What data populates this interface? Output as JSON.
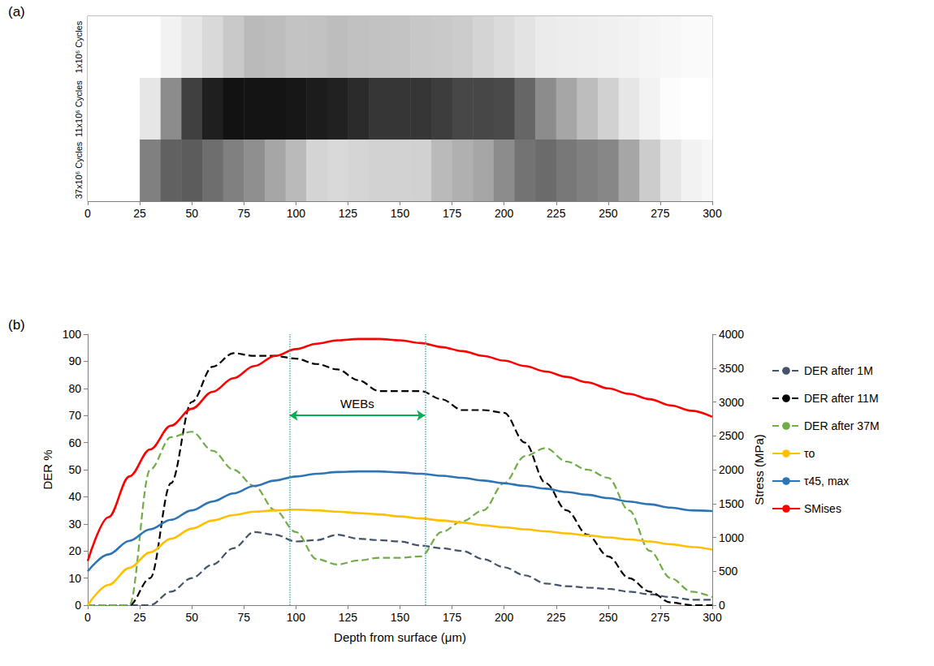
{
  "chart_data": [
    {
      "panel": "(a)",
      "type": "heatmap",
      "x": [
        0,
        10,
        20,
        30,
        40,
        50,
        60,
        70,
        80,
        90,
        100,
        110,
        120,
        130,
        140,
        150,
        160,
        170,
        180,
        190,
        200,
        210,
        220,
        230,
        240,
        250,
        260,
        270,
        280,
        290,
        300
      ],
      "categories": [
        "1x10⁶ Cycles",
        "11x10⁶ Cycles",
        "37x10⁶ Cycles"
      ],
      "cells": [
        [
          0,
          0,
          0,
          0,
          5,
          10,
          15,
          21,
          27,
          26,
          23.5,
          24,
          26,
          24.5,
          24,
          23.5,
          22,
          21,
          20,
          17,
          14,
          11,
          8,
          7,
          6.5,
          6,
          5,
          4,
          3,
          2,
          2
        ],
        [
          0,
          0,
          0,
          10,
          45,
          75,
          88,
          93,
          92,
          92,
          91,
          89,
          87,
          83,
          79,
          79,
          79,
          76,
          72,
          72,
          71,
          60,
          45,
          35,
          26,
          18,
          10,
          5,
          1,
          0,
          0
        ],
        [
          0,
          0,
          0,
          50,
          62,
          64,
          57,
          50,
          44,
          35,
          27,
          17,
          15,
          16.5,
          17.5,
          17.5,
          18,
          27,
          31,
          35,
          45,
          55,
          58,
          53,
          50,
          47,
          35,
          20,
          10,
          5,
          3
        ]
      ],
      "color_range": [
        0,
        100
      ],
      "xlim": [
        0,
        300
      ],
      "xticks": [
        0,
        25,
        50,
        75,
        100,
        125,
        150,
        175,
        200,
        225,
        250,
        275,
        300
      ]
    },
    {
      "panel": "(b)",
      "type": "line",
      "x_label": "Depth from surface (μm)",
      "y_label": "DER %",
      "y2_label": "Stress (MPa)",
      "x": [
        0,
        10,
        20,
        30,
        40,
        50,
        60,
        70,
        80,
        90,
        100,
        110,
        120,
        130,
        140,
        150,
        160,
        170,
        180,
        190,
        200,
        210,
        220,
        230,
        240,
        250,
        260,
        270,
        280,
        290,
        300
      ],
      "xlim": [
        0,
        300
      ],
      "xticks": [
        0,
        25,
        50,
        75,
        100,
        125,
        150,
        175,
        200,
        225,
        250,
        275,
        300
      ],
      "ylim": [
        0,
        100
      ],
      "yticks": [
        0,
        10,
        20,
        30,
        40,
        50,
        60,
        70,
        80,
        90,
        100
      ],
      "y2lim": [
        0,
        4000
      ],
      "y2ticks": [
        0,
        500,
        1000,
        1500,
        2000,
        2500,
        3000,
        3500,
        4000
      ],
      "grid": false,
      "legend": "right",
      "series": [
        {
          "name": "DER after 1M",
          "color": "#44546a",
          "line_style": "dashed",
          "marker": "none",
          "values": [
            0,
            0,
            0,
            0,
            5,
            10,
            15,
            21,
            27,
            26,
            23.5,
            24,
            26,
            24.5,
            24,
            23.5,
            22,
            21,
            20,
            17,
            14,
            11,
            8,
            7,
            6.5,
            6,
            5,
            4,
            3,
            2,
            2
          ]
        },
        {
          "name": "DER after 11M",
          "color": "#000000",
          "line_style": "dashed",
          "marker": "none",
          "values": [
            0,
            0,
            0,
            10,
            45,
            75,
            88,
            93,
            92,
            92,
            91,
            89,
            87,
            83,
            79,
            79,
            79,
            76,
            72,
            72,
            71,
            60,
            45,
            35,
            26,
            18,
            10,
            5,
            1,
            0,
            0
          ]
        },
        {
          "name": "DER after 37M",
          "color": "#70ad47",
          "line_style": "dashed",
          "marker": "none",
          "values": [
            0,
            0,
            0,
            50,
            62,
            64,
            57,
            50,
            44,
            35,
            27,
            17,
            15,
            16.5,
            17.5,
            17.5,
            18,
            27,
            31,
            35,
            45,
            55,
            58,
            53,
            50,
            47,
            35,
            20,
            10,
            5,
            3
          ]
        },
        {
          "name": "τo",
          "color": "#ffc000",
          "line_style": "solid",
          "marker": "none",
          "axis": "y2",
          "values": [
            0,
            300,
            550,
            780,
            980,
            1130,
            1250,
            1330,
            1380,
            1400,
            1410,
            1400,
            1380,
            1360,
            1340,
            1310,
            1280,
            1250,
            1220,
            1180,
            1150,
            1120,
            1090,
            1060,
            1030,
            1000,
            970,
            940,
            900,
            860,
            820
          ]
        },
        {
          "name": "τ45, max",
          "color": "#2e75b6",
          "line_style": "solid",
          "marker": "none",
          "axis": "y2",
          "values": [
            500,
            750,
            950,
            1120,
            1260,
            1400,
            1530,
            1650,
            1760,
            1840,
            1900,
            1940,
            1965,
            1975,
            1975,
            1960,
            1940,
            1910,
            1880,
            1840,
            1800,
            1760,
            1720,
            1670,
            1630,
            1580,
            1530,
            1490,
            1440,
            1400,
            1390
          ]
        },
        {
          "name": "SMises",
          "color": "#ff0000",
          "line_style": "solid",
          "marker": "none",
          "axis": "y2",
          "values": [
            650,
            1300,
            1900,
            2300,
            2650,
            2900,
            3150,
            3350,
            3530,
            3680,
            3780,
            3860,
            3910,
            3930,
            3930,
            3910,
            3870,
            3810,
            3750,
            3680,
            3610,
            3530,
            3450,
            3370,
            3290,
            3200,
            3120,
            3040,
            2950,
            2870,
            2780
          ]
        }
      ],
      "annotations": [
        {
          "text": "WEBs",
          "x_range": [
            97,
            162
          ],
          "y": 70
        }
      ]
    }
  ]
}
